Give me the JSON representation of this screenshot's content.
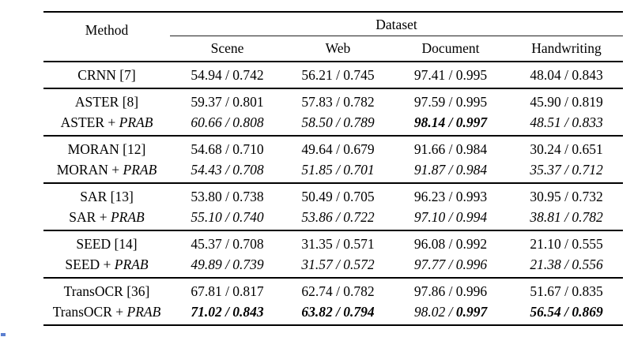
{
  "colors": {
    "rule": "#000000",
    "text": "#000000",
    "background": "#ffffff",
    "artifact_dot": "#5b7fd0"
  },
  "table": {
    "header": {
      "method": "Method",
      "dataset": "Dataset",
      "columns": [
        "Scene",
        "Web",
        "Document",
        "Handwriting"
      ]
    },
    "groups": [
      {
        "rows": [
          {
            "method": [
              [
                "CRNN [7]",
                "n"
              ]
            ],
            "cells": [
              [
                [
                  "54.94 / 0.742",
                  "n"
                ]
              ],
              [
                [
                  "56.21 / 0.745",
                  "n"
                ]
              ],
              [
                [
                  "97.41 / 0.995",
                  "n"
                ]
              ],
              [
                [
                  "48.04 / 0.843",
                  "n"
                ]
              ]
            ]
          }
        ]
      },
      {
        "rows": [
          {
            "method": [
              [
                "ASTER [8]",
                "n"
              ]
            ],
            "cells": [
              [
                [
                  "59.37 / 0.801",
                  "n"
                ]
              ],
              [
                [
                  "57.83 / 0.782",
                  "n"
                ]
              ],
              [
                [
                  "97.59 / 0.995",
                  "n"
                ]
              ],
              [
                [
                  "45.90 / 0.819",
                  "n"
                ]
              ]
            ]
          },
          {
            "method": [
              [
                "ASTER + ",
                "n"
              ],
              [
                "PRAB",
                "i"
              ]
            ],
            "cells": [
              [
                [
                  "60.66 / 0.808",
                  "i"
                ]
              ],
              [
                [
                  "58.50 / 0.789",
                  "i"
                ]
              ],
              [
                [
                  "98.14 / 0.997",
                  "bi"
                ]
              ],
              [
                [
                  "48.51 / 0.833",
                  "i"
                ]
              ]
            ]
          }
        ]
      },
      {
        "rows": [
          {
            "method": [
              [
                "MORAN [12]",
                "n"
              ]
            ],
            "cells": [
              [
                [
                  "54.68 / 0.710",
                  "n"
                ]
              ],
              [
                [
                  "49.64 / 0.679",
                  "n"
                ]
              ],
              [
                [
                  "91.66 / 0.984",
                  "n"
                ]
              ],
              [
                [
                  "30.24 / 0.651",
                  "n"
                ]
              ]
            ]
          },
          {
            "method": [
              [
                "MORAN + ",
                "n"
              ],
              [
                "PRAB",
                "i"
              ]
            ],
            "cells": [
              [
                [
                  "54.43 / 0.708",
                  "i"
                ]
              ],
              [
                [
                  "51.85 / 0.701",
                  "i"
                ]
              ],
              [
                [
                  "91.87 / 0.984",
                  "i"
                ]
              ],
              [
                [
                  "35.37 / 0.712",
                  "i"
                ]
              ]
            ]
          }
        ]
      },
      {
        "rows": [
          {
            "method": [
              [
                "SAR [13]",
                "n"
              ]
            ],
            "cells": [
              [
                [
                  "53.80 / 0.738",
                  "n"
                ]
              ],
              [
                [
                  "50.49 / 0.705",
                  "n"
                ]
              ],
              [
                [
                  "96.23 / 0.993",
                  "n"
                ]
              ],
              [
                [
                  "30.95 / 0.732",
                  "n"
                ]
              ]
            ]
          },
          {
            "method": [
              [
                "SAR + ",
                "n"
              ],
              [
                "PRAB",
                "i"
              ]
            ],
            "cells": [
              [
                [
                  "55.10 / 0.740",
                  "i"
                ]
              ],
              [
                [
                  "53.86 / 0.722",
                  "i"
                ]
              ],
              [
                [
                  "97.10 / 0.994",
                  "i"
                ]
              ],
              [
                [
                  "38.81 / 0.782",
                  "i"
                ]
              ]
            ]
          }
        ]
      },
      {
        "rows": [
          {
            "method": [
              [
                "SEED [14]",
                "n"
              ]
            ],
            "cells": [
              [
                [
                  "45.37 / 0.708",
                  "n"
                ]
              ],
              [
                [
                  "31.35 / 0.571",
                  "n"
                ]
              ],
              [
                [
                  "96.08 / 0.992",
                  "n"
                ]
              ],
              [
                [
                  "21.10 / 0.555",
                  "n"
                ]
              ]
            ]
          },
          {
            "method": [
              [
                "SEED + ",
                "n"
              ],
              [
                "PRAB",
                "i"
              ]
            ],
            "cells": [
              [
                [
                  "49.89 / 0.739",
                  "i"
                ]
              ],
              [
                [
                  "31.57 / 0.572",
                  "i"
                ]
              ],
              [
                [
                  "97.77 / 0.996",
                  "i"
                ]
              ],
              [
                [
                  "21.38 / 0.556",
                  "i"
                ]
              ]
            ]
          }
        ]
      },
      {
        "rows": [
          {
            "method": [
              [
                "TransOCR [36]",
                "n"
              ]
            ],
            "cells": [
              [
                [
                  "67.81 / 0.817",
                  "n"
                ]
              ],
              [
                [
                  "62.74 / 0.782",
                  "n"
                ]
              ],
              [
                [
                  "97.86 / 0.996",
                  "n"
                ]
              ],
              [
                [
                  "51.67 / 0.835",
                  "n"
                ]
              ]
            ]
          },
          {
            "method": [
              [
                "TransOCR + ",
                "n"
              ],
              [
                "PRAB",
                "i"
              ]
            ],
            "cells": [
              [
                [
                  "71.02 / 0.843",
                  "bi"
                ]
              ],
              [
                [
                  "63.82 / 0.794",
                  "bi"
                ]
              ],
              [
                [
                  "98.02 / ",
                  "i"
                ],
                [
                  "0.997",
                  "bi"
                ]
              ],
              [
                [
                  "56.54 / 0.869",
                  "bi"
                ]
              ]
            ]
          }
        ]
      }
    ]
  }
}
